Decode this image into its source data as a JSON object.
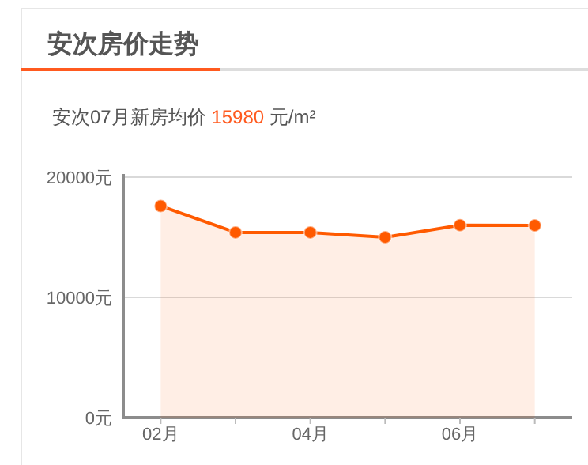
{
  "chart_data": {
    "type": "area",
    "title": "安次房价走势",
    "subtitle": "安次07月新房均价 15980 元/m²",
    "categories": [
      "02月",
      null,
      "04月",
      null,
      "06月",
      null
    ],
    "series": [
      {
        "color": "#ff5a00",
        "values": [
          17600,
          15400,
          15400,
          15000,
          16000,
          15980
        ]
      }
    ],
    "ylim": [
      0,
      20000
    ],
    "yticks": [
      {
        "value": 0,
        "label": "0元"
      },
      {
        "value": 10000,
        "label": "10000元"
      },
      {
        "value": 20000,
        "label": "20000元"
      }
    ],
    "grid": "y",
    "marker": "circle"
  }
}
